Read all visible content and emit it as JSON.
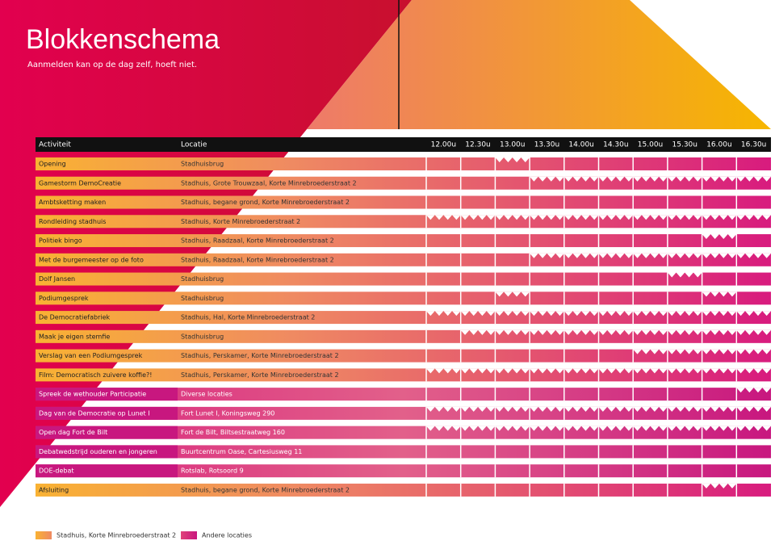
{
  "header": {
    "title": "Blokkenschema",
    "subtitle": "Aanmelden kan op de dag zelf, hoeft niet."
  },
  "table": {
    "columns": [
      "Activiteit",
      "Locatie",
      "12.00u",
      "12.30u",
      "13.00u",
      "13.30u",
      "14.00u",
      "14.30u",
      "15.00u",
      "15.30u",
      "16.00u",
      "16.30u"
    ],
    "rows": [
      [
        "Opening",
        "Stadhuisbrug"
      ],
      [
        "Gamestorm DemoCreatie",
        "Stadhuis, Grote Trouwzaal, Korte Minrebroederstraat 2"
      ],
      [
        "Ambtsketting maken",
        "Stadhuis, begane grond, Korte Minrebroederstraat 2"
      ],
      [
        "Rondleiding stadhuis",
        "Stadhuis, Korte Minrebroederstraat 2"
      ],
      [
        "Politiek bingo",
        "Stadhuis, Raadzaal, Korte Minrebroederstraat 2"
      ],
      [
        "Met de burgemeester op de foto",
        "Stadhuis, Raadzaal, Korte Minrebroederstraat 2"
      ],
      [
        "Dolf Jansen",
        "Stadhuisbrug"
      ],
      [
        "Podiumgesprek",
        "Stadhuisbrug"
      ],
      [
        "De Democratiefabriek",
        "Stadhuis, Hal, Korte Minrebroederstraat 2"
      ],
      [
        "Maak je eigen stemfie",
        "Stadhuisbrug"
      ],
      [
        "Verslag van een Podiumgesprek",
        "Stadhuis, Perskamer, Korte Minrebroederstraat 2"
      ],
      [
        "Film: Democratisch zuivere koffie?!",
        "Stadhuis, Perskamer, Korte Minrebroederstraat 2"
      ],
      [
        "Spreek de wethouder Participatie",
        "Diverse locaties"
      ],
      [
        "Dag van de Democratie op Lunet I",
        "Fort Lunet I, Koningsweg 290"
      ],
      [
        "Open dag Fort de Bilt",
        "Fort de Bilt, Biltsestraatweg 160"
      ],
      [
        "Debatwedstrijd ouderen en jongeren",
        "Buurtcentrum Oase, Cartesiusweg 11"
      ],
      [
        "DOE-debat",
        "Rotslab, Rotsoord 9"
      ],
      [
        "Afsluiting",
        "Stadhuis, begane grond, Korte Minrebroederstraat 2"
      ]
    ]
  },
  "legend": [
    "Stadhuis, Korte Minrebroederstraat 2",
    "Andere locaties"
  ]
}
